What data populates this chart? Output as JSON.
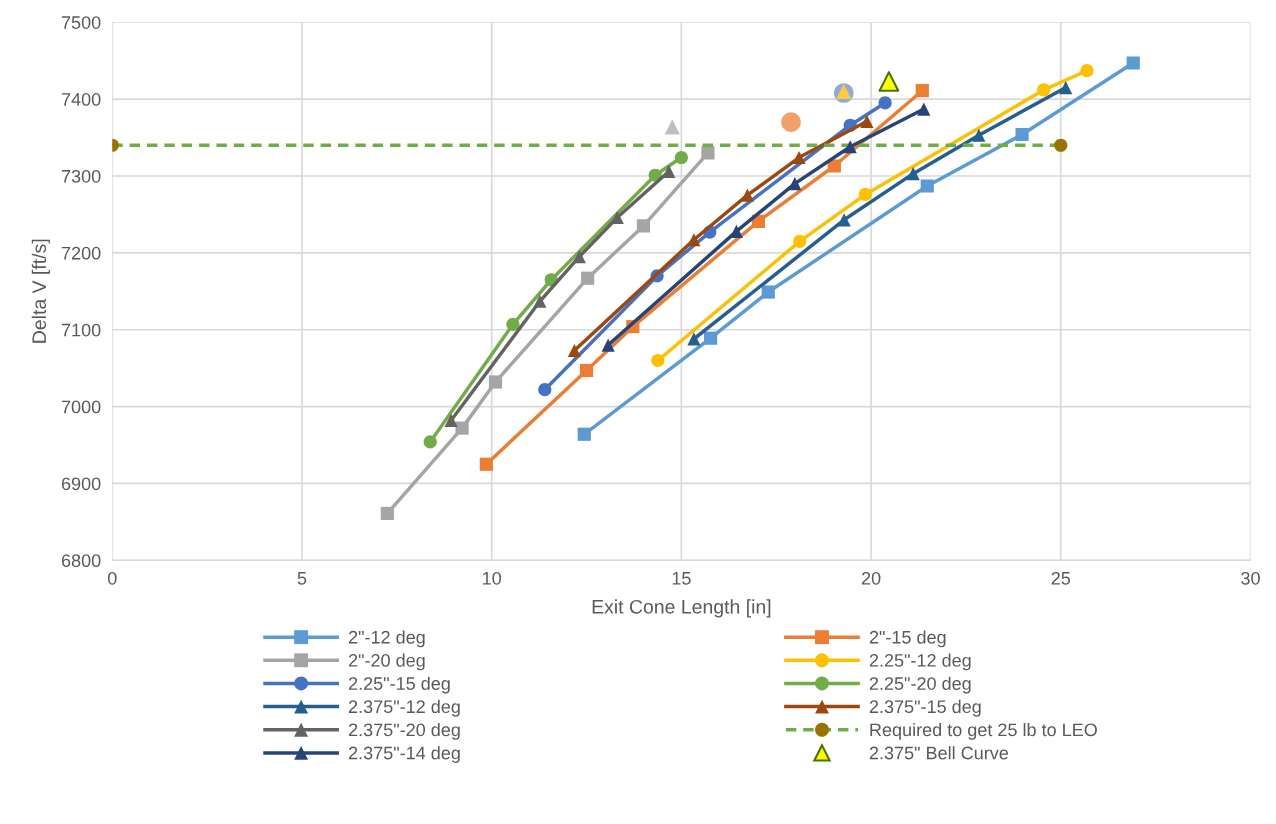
{
  "chart_data": {
    "type": "line",
    "xlabel": "Exit Cone Length [in]",
    "ylabel": "Delta V [ft/s]",
    "xlim": [
      0,
      30
    ],
    "xticks": [
      0,
      5,
      10,
      15,
      20,
      25,
      30
    ],
    "ylim": [
      6800,
      7500
    ],
    "yticks": [
      6800,
      6900,
      7000,
      7100,
      7200,
      7300,
      7400,
      7500
    ],
    "grid": true,
    "legend": "bottom",
    "line_style": "solid",
    "series": [
      {
        "name": "2\"-12 deg",
        "color": "#5b9bd5",
        "marker": "square",
        "x": [
          12.44,
          15.77,
          17.29,
          21.48,
          23.98,
          26.91
        ],
        "values": [
          6964,
          7089,
          7149,
          7287,
          7354,
          7447
        ]
      },
      {
        "name": "2\"-15 deg",
        "color": "#ed7d31",
        "marker": "square",
        "x": [
          9.86,
          12.5,
          13.72,
          17.03,
          19.03,
          21.35
        ],
        "values": [
          6925,
          7047,
          7104,
          7241,
          7313,
          7411
        ]
      },
      {
        "name": "2\"-20 deg",
        "color": "#a5a5a5",
        "marker": "square",
        "x": [
          7.25,
          9.22,
          10.1,
          12.53,
          14.0,
          15.7
        ],
        "values": [
          6861,
          6972,
          7032,
          7167,
          7235,
          7330
        ]
      },
      {
        "name": "2.25\"-12 deg",
        "color": "#ffc000",
        "marker": "circle",
        "x": [
          14.38,
          18.12,
          19.85,
          24.55,
          25.69
        ],
        "values": [
          7060,
          7215,
          7276,
          7412,
          7437
        ]
      },
      {
        "name": "2.25\"-15 deg",
        "color": "#4472c4",
        "marker": "circle",
        "x": [
          11.4,
          14.36,
          15.75,
          19.45,
          20.37
        ],
        "values": [
          7022,
          7170,
          7227,
          7366,
          7395
        ]
      },
      {
        "name": "2.25\"-20 deg",
        "color": "#70ad47",
        "marker": "circle",
        "x": [
          8.38,
          10.56,
          11.57,
          14.31,
          15.0
        ],
        "values": [
          6954,
          7107,
          7165,
          7301,
          7324
        ]
      },
      {
        "name": "2.375\"-12 deg",
        "color": "#255e91",
        "marker": "triangle",
        "x": [
          15.33,
          19.29,
          21.11,
          22.84,
          25.13
        ],
        "values": [
          7088,
          7243,
          7303,
          7353,
          7415
        ]
      },
      {
        "name": "2.375\"-15 deg",
        "color": "#9e480e",
        "marker": "triangle",
        "x": [
          12.18,
          15.33,
          16.74,
          18.1,
          19.89
        ],
        "values": [
          7073,
          7217,
          7275,
          7324,
          7371
        ]
      },
      {
        "name": "2.375\"-20 deg",
        "color": "#636363",
        "marker": "triangle",
        "x": [
          8.93,
          11.27,
          12.31,
          13.31,
          14.67
        ],
        "values": [
          6982,
          7137,
          7195,
          7246,
          7306
        ]
      },
      {
        "name": "Required to get 25 lb to LEO",
        "color": "#70ad47",
        "colors": [
          "#997300",
          "#997300"
        ],
        "marker": "circle",
        "line_style": "dashed",
        "x": [
          0,
          25
        ],
        "values": [
          7340,
          7340
        ]
      },
      {
        "name": "2.375\"-14 deg",
        "color": "#264478",
        "marker": "triangle",
        "x": [
          13.07,
          16.45,
          17.99,
          19.45,
          21.39
        ],
        "values": [
          7080,
          7228,
          7290,
          7338,
          7387
        ]
      },
      {
        "name": "2.375\" Bell Curve",
        "type": "scatter",
        "color": "#ffff00",
        "marker": "triangle",
        "x": [
          20.47
        ],
        "values": [
          7423
        ]
      },
      {
        "type": "scatter",
        "color": "#bfbfbf",
        "marker": "triangle",
        "x": [
          14.76
        ],
        "values": [
          7364
        ]
      },
      {
        "type": "scatter",
        "color": "#f4a06a",
        "marker": "circle",
        "x": [
          17.89
        ],
        "values": [
          7370
        ]
      },
      {
        "type": "scatter",
        "color": "#8faadc",
        "marker": "circle",
        "x": [
          19.28
        ],
        "values": [
          7408
        ]
      },
      {
        "type": "scatter",
        "color": "#ffc93c",
        "marker": "triangle",
        "x": [
          19.28
        ],
        "values": [
          7410
        ]
      }
    ]
  }
}
